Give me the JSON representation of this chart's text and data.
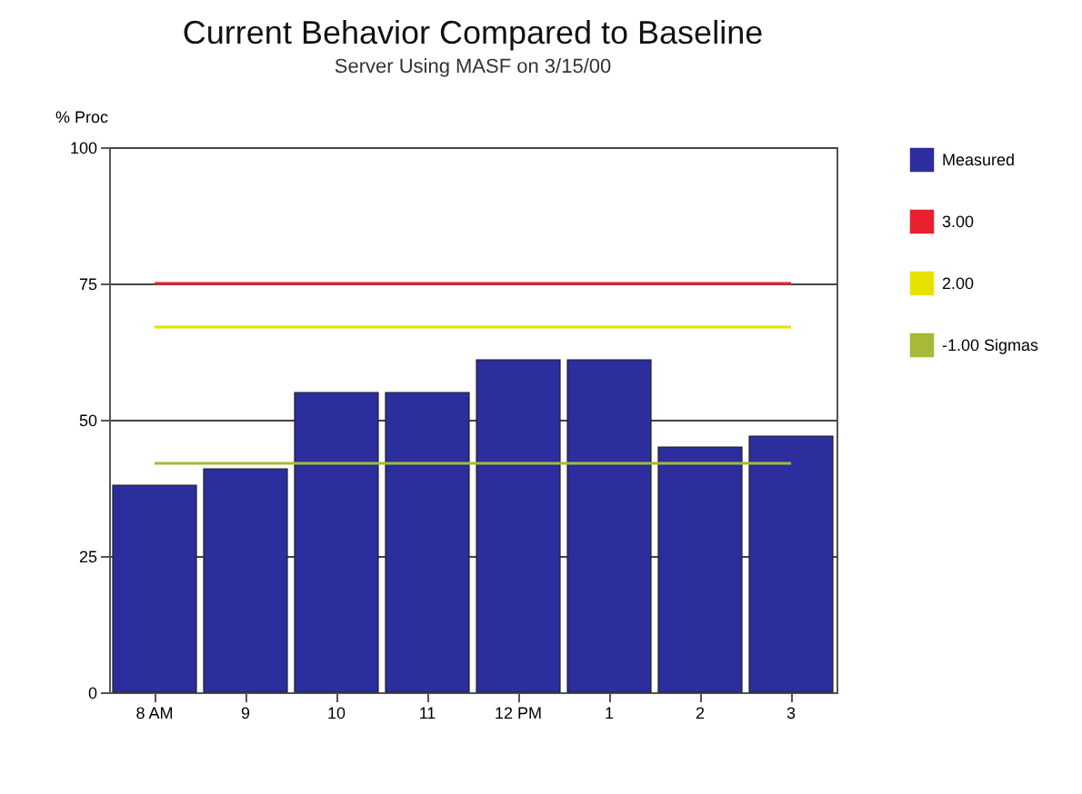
{
  "chart_data": {
    "type": "bar",
    "title": "Current Behavior Compared to Baseline",
    "subtitle": "Server Using MASF on 3/15/00",
    "ylabel": "% Proc",
    "categories": [
      "8 AM",
      "9",
      "10",
      "11",
      "12 PM",
      "1",
      "2",
      "3"
    ],
    "series": [
      {
        "name": "Measured",
        "color": "#2b2e9c",
        "values": [
          38,
          41,
          55,
          55,
          61,
          61,
          45,
          47
        ]
      },
      {
        "name": "3.00",
        "type": "line",
        "color": "#e82030",
        "values": [
          75,
          75,
          75,
          75,
          75,
          75,
          75,
          75
        ]
      },
      {
        "name": "2.00",
        "type": "line",
        "color": "#e8e000",
        "values": [
          67,
          67,
          67,
          67,
          67,
          67,
          67,
          67
        ]
      },
      {
        "name": "-1.00 Sigmas",
        "type": "line",
        "color": "#a8b838",
        "values": [
          42,
          42,
          42,
          42,
          42,
          42,
          42,
          42
        ]
      }
    ],
    "ylim": [
      0,
      100
    ],
    "yticks": [
      0,
      25,
      50,
      75,
      100
    ],
    "grid": "y",
    "legend": "right"
  }
}
